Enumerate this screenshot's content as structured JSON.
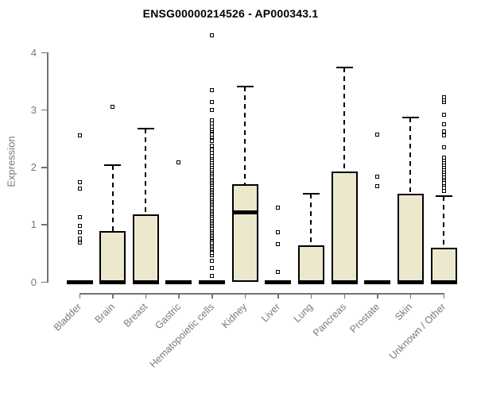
{
  "page": {
    "background": "#ffffff"
  },
  "chart_data": {
    "type": "boxplot",
    "title": "ENSG00000214526 - AP000343.1",
    "xlabel": "",
    "ylabel": "Expression",
    "ylim": [
      0,
      4.4
    ],
    "yticks": [
      0,
      1,
      2,
      3,
      4
    ],
    "grid": false,
    "legend": "none",
    "colors": {
      "box_fill": "#ECE8CD",
      "box_border": "#000000",
      "median": "#000000",
      "whisker": "#000000",
      "axis_line": "#737373",
      "tick_label": "#7a7a7a",
      "title": "#000000"
    },
    "categories": [
      "Bladder",
      "Brain",
      "Breast",
      "Gastric",
      "Hematopoietic cells",
      "Kidney",
      "Liver",
      "Lung",
      "Pancreas",
      "Prostate",
      "Skin",
      "Unknown / Other"
    ],
    "series": [
      {
        "category": "Bladder",
        "q1": 0,
        "median": 0,
        "q3": 0,
        "whisker_low": 0,
        "whisker_high": 0,
        "outliers": [
          0.69,
          0.72,
          0.76,
          0.86,
          0.97,
          1.13,
          1.63,
          1.74,
          2.55
        ]
      },
      {
        "category": "Brain",
        "q1": 0,
        "median": 0,
        "q3": 0.88,
        "whisker_low": 0,
        "whisker_high": 2.04,
        "outliers": [
          3.05
        ]
      },
      {
        "category": "Breast",
        "q1": 0,
        "median": 0,
        "q3": 1.18,
        "whisker_low": 0,
        "whisker_high": 2.67,
        "outliers": []
      },
      {
        "category": "Gastric",
        "q1": 0,
        "median": 0,
        "q3": 0,
        "whisker_low": 0,
        "whisker_high": 0,
        "outliers": [
          2.08
        ]
      },
      {
        "category": "Hematopoietic cells",
        "q1": 0,
        "median": 0,
        "q3": 0,
        "whisker_low": 0,
        "whisker_high": 0,
        "outliers": [
          0.1,
          0.24,
          0.37,
          0.47,
          0.51,
          0.57,
          0.6,
          0.63,
          0.66,
          0.69,
          0.72,
          0.75,
          0.77,
          0.79,
          0.82,
          0.85,
          0.88,
          0.91,
          0.94,
          0.97,
          1.0,
          1.03,
          1.06,
          1.09,
          1.12,
          1.15,
          1.18,
          1.21,
          1.24,
          1.27,
          1.3,
          1.33,
          1.36,
          1.39,
          1.42,
          1.45,
          1.48,
          1.51,
          1.54,
          1.57,
          1.6,
          1.63,
          1.66,
          1.69,
          1.72,
          1.75,
          1.78,
          1.81,
          1.84,
          1.87,
          1.9,
          1.93,
          1.96,
          2.0,
          2.04,
          2.08,
          2.12,
          2.16,
          2.2,
          2.25,
          2.31,
          2.37,
          2.46,
          2.52,
          2.57,
          2.63,
          2.66,
          2.71,
          2.76,
          2.82,
          2.99,
          3.13,
          3.34,
          4.3
        ]
      },
      {
        "category": "Kidney",
        "q1": 0,
        "median": 1.21,
        "q3": 1.7,
        "whisker_low": 0,
        "whisker_high": 3.4,
        "outliers": []
      },
      {
        "category": "Liver",
        "q1": 0,
        "median": 0,
        "q3": 0,
        "whisker_low": 0,
        "whisker_high": 0,
        "outliers": [
          0.17,
          0.66,
          0.86,
          1.3
        ]
      },
      {
        "category": "Lung",
        "q1": 0,
        "median": 0,
        "q3": 0.63,
        "whisker_low": 0,
        "whisker_high": 1.53,
        "outliers": []
      },
      {
        "category": "Pancreas",
        "q1": 0,
        "median": 0,
        "q3": 1.92,
        "whisker_low": 0,
        "whisker_high": 3.74,
        "outliers": []
      },
      {
        "category": "Prostate",
        "q1": 0,
        "median": 0,
        "q3": 0,
        "whisker_low": 0,
        "whisker_high": 0,
        "outliers": [
          1.67,
          1.83,
          2.57
        ]
      },
      {
        "category": "Skin",
        "q1": 0,
        "median": 0,
        "q3": 1.53,
        "whisker_low": 0,
        "whisker_high": 2.86,
        "outliers": []
      },
      {
        "category": "Unknown / Other",
        "q1": 0,
        "median": 0,
        "q3": 0.6,
        "whisker_low": 0,
        "whisker_high": 1.5,
        "outliers": [
          1.58,
          1.64,
          1.69,
          1.73,
          1.78,
          1.81,
          1.84,
          1.88,
          1.92,
          1.96,
          2.0,
          2.04,
          2.08,
          2.12,
          2.16,
          2.34,
          2.55,
          2.62,
          2.75,
          2.92,
          3.14,
          3.18,
          3.22
        ]
      }
    ]
  }
}
